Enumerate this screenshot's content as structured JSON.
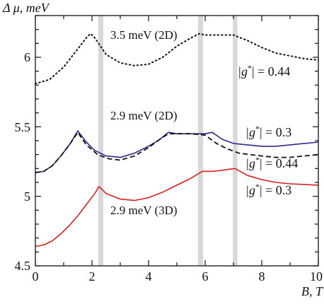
{
  "chart_data": {
    "type": "line",
    "title": "",
    "xlabel": "B, T",
    "ylabel": "Δ μ, meV",
    "xlim": [
      0,
      10
    ],
    "ylim": [
      4.5,
      6.3
    ],
    "x_ticks": [
      "0",
      "2",
      "4",
      "6",
      "8",
      "10"
    ],
    "y_ticks": [
      "4.5",
      "5",
      "5.5",
      "6"
    ],
    "grid": false,
    "shaded_bands": [
      {
        "x_start": 2.22,
        "x_end": 2.4
      },
      {
        "x_start": 5.75,
        "x_end": 5.93
      },
      {
        "x_start": 6.98,
        "x_end": 7.14
      }
    ],
    "series": [
      {
        "style": "dotted",
        "color": "#111111",
        "x": [
          0,
          0.5,
          1.0,
          1.5,
          1.8,
          1.95,
          2.1,
          2.5,
          3.0,
          3.5,
          4.0,
          4.5,
          5.0,
          5.5,
          5.8,
          6.0,
          6.5,
          7.0,
          7.5,
          8.0,
          8.5,
          9.0,
          9.5,
          10.0
        ],
        "y": [
          5.81,
          5.84,
          5.93,
          6.06,
          6.14,
          6.17,
          6.14,
          6.02,
          5.96,
          5.94,
          5.95,
          6.0,
          6.08,
          6.14,
          6.17,
          6.16,
          6.16,
          6.16,
          6.12,
          6.07,
          6.03,
          6.01,
          5.99,
          5.98
        ]
      },
      {
        "style": "solid",
        "color": "#2b2b8c",
        "x": [
          0,
          0.3,
          0.6,
          0.9,
          1.2,
          1.5,
          1.8,
          2.1,
          2.5,
          3.0,
          3.5,
          4.0,
          4.4,
          4.7,
          5.0,
          5.5,
          6.0,
          6.25,
          6.6,
          7.0,
          7.5,
          8.0,
          8.5,
          9.0,
          9.5,
          10.0
        ],
        "y": [
          5.17,
          5.18,
          5.22,
          5.29,
          5.37,
          5.47,
          5.39,
          5.33,
          5.29,
          5.28,
          5.31,
          5.36,
          5.41,
          5.46,
          5.45,
          5.45,
          5.45,
          5.46,
          5.41,
          5.38,
          5.37,
          5.36,
          5.36,
          5.37,
          5.38,
          5.39
        ]
      },
      {
        "style": "dashed",
        "color": "#111111",
        "x": [
          0,
          0.3,
          0.6,
          0.9,
          1.2,
          1.5,
          1.8,
          2.2,
          2.6,
          3.0,
          3.5,
          4.0,
          4.4,
          4.7,
          5.0,
          5.5,
          6.0,
          6.4,
          6.8,
          7.2,
          7.6,
          8.0,
          8.5,
          9.0,
          9.5,
          10.0
        ],
        "y": [
          5.17,
          5.18,
          5.22,
          5.29,
          5.37,
          5.46,
          5.37,
          5.3,
          5.27,
          5.26,
          5.29,
          5.35,
          5.41,
          5.45,
          5.45,
          5.45,
          5.44,
          5.38,
          5.34,
          5.31,
          5.3,
          5.29,
          5.28,
          5.28,
          5.29,
          5.3
        ]
      },
      {
        "style": "solid",
        "color": "#d62020",
        "x": [
          0,
          0.3,
          0.6,
          0.9,
          1.2,
          1.5,
          1.8,
          2.1,
          2.25,
          2.5,
          3.0,
          3.5,
          4.0,
          4.5,
          5.0,
          5.5,
          5.9,
          6.3,
          6.7,
          7.05,
          7.5,
          8.0,
          8.5,
          9.0,
          9.5,
          10.0
        ],
        "y": [
          4.64,
          4.65,
          4.68,
          4.73,
          4.79,
          4.86,
          4.94,
          5.02,
          5.07,
          5.02,
          4.98,
          4.97,
          4.99,
          5.03,
          5.08,
          5.13,
          5.18,
          5.18,
          5.19,
          5.2,
          5.15,
          5.12,
          5.1,
          5.09,
          5.085,
          5.08
        ]
      }
    ],
    "annotations": [
      "3.5 meV (2D)",
      "2.9 meV (2D)",
      "2.9 meV (3D)"
    ],
    "g_labels": [
      {
        "prefix": "|g",
        "sup": "*",
        "suffix": "| = 0.44"
      },
      {
        "prefix": "|g",
        "sup": "*",
        "suffix": "| = 0.3"
      },
      {
        "prefix": "|g",
        "sup": "*",
        "suffix": "| = 0.44"
      },
      {
        "prefix": "|g",
        "sup": "*",
        "suffix": "| = 0.3"
      }
    ]
  }
}
